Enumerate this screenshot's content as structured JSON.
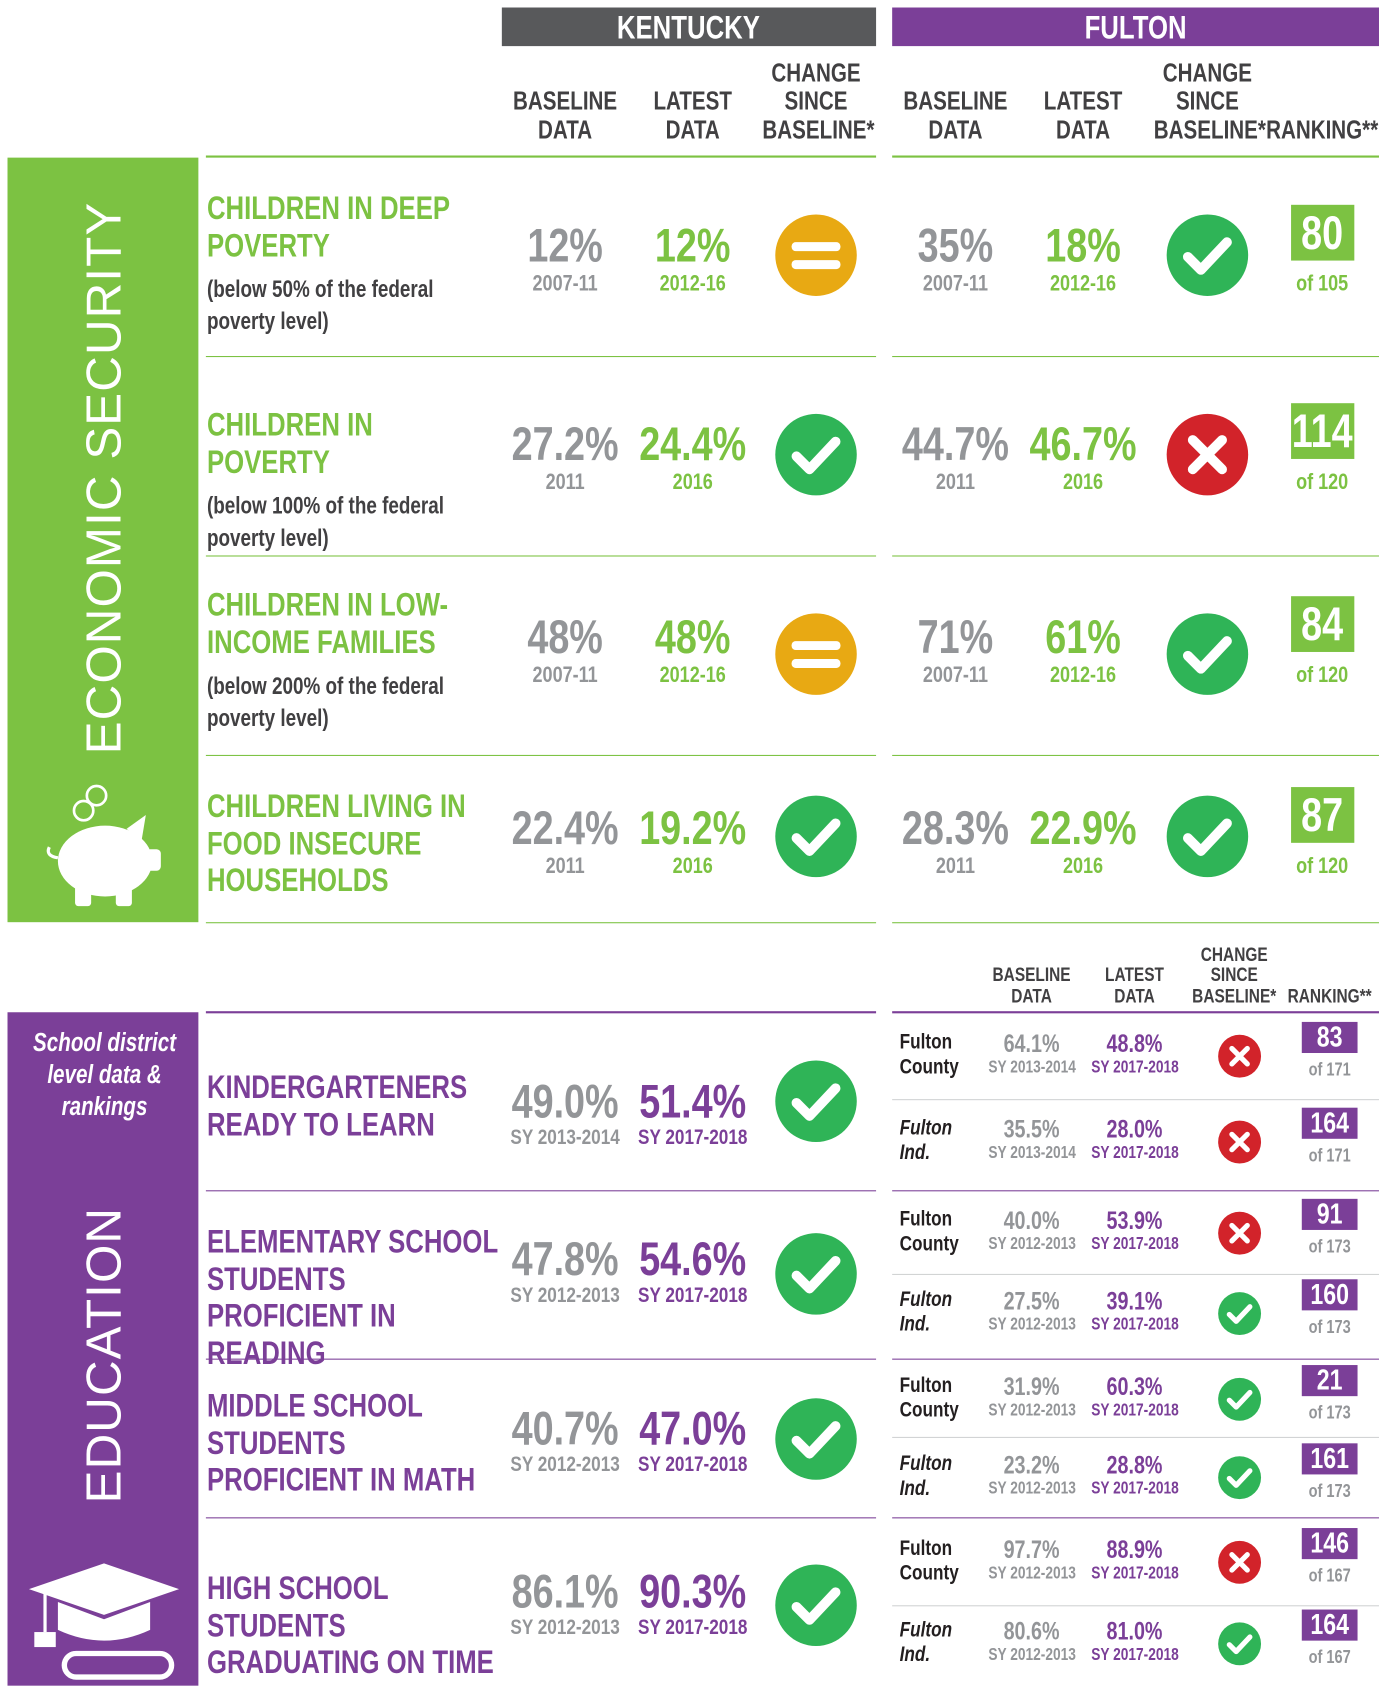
{
  "header": {
    "kentucky": "KENTUCKY",
    "fulton": "FULTON"
  },
  "columns": {
    "baseline": "BASELINE DATA",
    "latest": "LATEST DATA",
    "change": "CHANGE SINCE BASELINE*",
    "ranking": "RANKING**"
  },
  "economic_security": {
    "name": "ECONOMIC SECURITY",
    "rows": [
      {
        "title": "CHILDREN IN DEEP POVERTY",
        "note": "(below 50% of the federal poverty level)",
        "kentucky": {
          "baseline": "12%",
          "baseline_year": "2007-11",
          "latest": "12%",
          "latest_year": "2012-16"
        },
        "fulton": {
          "baseline": "35%",
          "baseline_year": "2007-11",
          "latest": "18%",
          "latest_year": "2012-16",
          "rank": "80",
          "rank_of": "of 105"
        }
      },
      {
        "title": "CHILDREN IN POVERTY",
        "note": "(below 100% of the federal poverty level)",
        "kentucky": {
          "baseline": "27.2%",
          "baseline_year": "2011",
          "latest": "24.4%",
          "latest_year": "2016"
        },
        "fulton": {
          "baseline": "44.7%",
          "baseline_year": "2011",
          "latest": "46.7%",
          "latest_year": "2016",
          "rank": "114",
          "rank_of": "of 120"
        }
      },
      {
        "title": "CHILDREN IN LOW-INCOME FAMILIES",
        "note": "(below 200% of the federal poverty level)",
        "kentucky": {
          "baseline": "48%",
          "baseline_year": "2007-11",
          "latest": "48%",
          "latest_year": "2012-16"
        },
        "fulton": {
          "baseline": "71%",
          "baseline_year": "2007-11",
          "latest": "61%",
          "latest_year": "2012-16",
          "rank": "84",
          "rank_of": "of 120"
        }
      },
      {
        "title": "CHILDREN LIVING IN FOOD INSECURE HOUSEHOLDS",
        "kentucky": {
          "baseline": "22.4%",
          "baseline_year": "2011",
          "latest": "19.2%",
          "latest_year": "2016"
        },
        "fulton": {
          "baseline": "28.3%",
          "baseline_year": "2011",
          "latest": "22.9%",
          "latest_year": "2016",
          "rank": "87",
          "rank_of": "of 120"
        }
      }
    ]
  },
  "education": {
    "name": "EDUCATION",
    "note": "School district level data & rankings",
    "columns": {
      "baseline": "BASELINE DATA",
      "latest": "LATEST DATA",
      "change": "CHANGE SINCE BASELINE*",
      "ranking": "RANKING**"
    },
    "rows": [
      {
        "title": "KINDERGARTENERS READY TO LEARN",
        "kentucky": {
          "baseline": "49.0%",
          "baseline_year": "SY 2013-2014",
          "latest": "51.4%",
          "latest_year": "SY 2017-2018"
        },
        "districts": [
          {
            "name": "Fulton County",
            "baseline": "64.1%",
            "baseline_year": "SY 2013-2014",
            "latest": "48.8%",
            "latest_year": "SY 2017-2018",
            "rank": "83",
            "rank_of": "of 171"
          },
          {
            "name": "Fulton Ind.",
            "baseline": "35.5%",
            "baseline_year": "SY 2013-2014",
            "latest": "28.0%",
            "latest_year": "SY 2017-2018",
            "rank": "164",
            "rank_of": "of 171"
          }
        ]
      },
      {
        "title": "ELEMENTARY SCHOOL STUDENTS PROFICIENT IN READING",
        "kentucky": {
          "baseline": "47.8%",
          "baseline_year": "SY 2012-2013",
          "latest": "54.6%",
          "latest_year": "SY 2017-2018"
        },
        "districts": [
          {
            "name": "Fulton County",
            "baseline": "40.0%",
            "baseline_year": "SY 2012-2013",
            "latest": "53.9%",
            "latest_year": "SY 2017-2018",
            "rank": "91",
            "rank_of": "of 173"
          },
          {
            "name": "Fulton Ind.",
            "baseline": "27.5%",
            "baseline_year": "SY 2012-2013",
            "latest": "39.1%",
            "latest_year": "SY 2017-2018",
            "rank": "160",
            "rank_of": "of 173"
          }
        ]
      },
      {
        "title": "MIDDLE SCHOOL STUDENTS PROFICIENT IN MATH",
        "kentucky": {
          "baseline": "40.7%",
          "baseline_year": "SY 2012-2013",
          "latest": "47.0%",
          "latest_year": "SY 2017-2018"
        },
        "districts": [
          {
            "name": "Fulton County",
            "baseline": "31.9%",
            "baseline_year": "SY 2012-2013",
            "latest": "60.3%",
            "latest_year": "SY 2017-2018",
            "rank": "21",
            "rank_of": "of 173"
          },
          {
            "name": "Fulton Ind.",
            "baseline": "23.2%",
            "baseline_year": "SY 2012-2013",
            "latest": "28.8%",
            "latest_year": "SY 2017-2018",
            "rank": "161",
            "rank_of": "of 173"
          }
        ]
      },
      {
        "title": "HIGH SCHOOL STUDENTS GRADUATING ON TIME",
        "kentucky": {
          "baseline": "86.1%",
          "baseline_year": "SY 2012-2013",
          "latest": "90.3%",
          "latest_year": "SY 2017-2018"
        },
        "districts": [
          {
            "name": "Fulton County",
            "baseline": "97.7%",
            "baseline_year": "SY 2012-2013",
            "latest": "88.9%",
            "latest_year": "SY 2017-2018",
            "rank": "146",
            "rank_of": "of 167"
          },
          {
            "name": "Fulton Ind.",
            "baseline": "80.6%",
            "baseline_year": "SY 2012-2013",
            "latest": "81.0%",
            "latest_year": "SY 2017-2018",
            "rank": "164",
            "rank_of": "of 167"
          }
        ]
      }
    ]
  }
}
